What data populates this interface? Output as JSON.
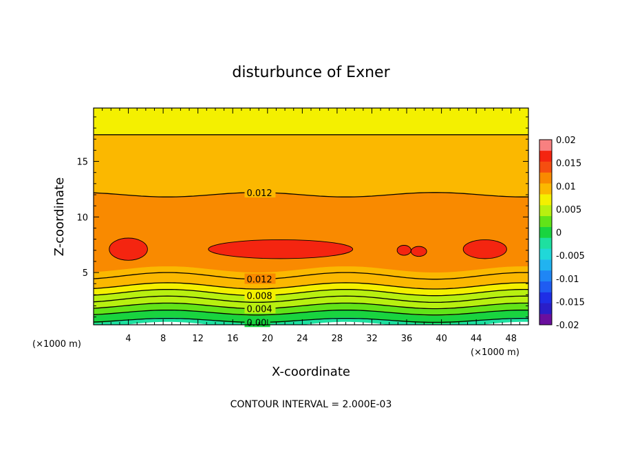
{
  "chart_data": {
    "type": "heatmap",
    "title": "disturbunce of Exner",
    "xlabel": "X-coordinate",
    "ylabel": "Z-coordinate",
    "x_unit": "(×1000 m)",
    "xlim": [
      0,
      50
    ],
    "ylim": [
      0.3,
      19.8
    ],
    "x_ticks": [
      4,
      8,
      12,
      16,
      20,
      24,
      28,
      32,
      36,
      40,
      44,
      48
    ],
    "x_tick_labels": [
      "4",
      "8",
      "12",
      "16",
      "20",
      "24",
      "28",
      "32",
      "36",
      "40",
      "44",
      "48"
    ],
    "y_ticks": [
      5,
      10,
      15
    ],
    "y_tick_labels": [
      "5",
      "10",
      "15"
    ],
    "contour_interval_text": "CONTOUR INTERVAL = 2.000E-03",
    "colorbar": {
      "levels": [
        -0.02,
        -0.0175,
        -0.015,
        -0.0125,
        -0.01,
        -0.0075,
        -0.005,
        -0.0025,
        0,
        0.0025,
        0.005,
        0.0075,
        0.01,
        0.0125,
        0.015,
        0.0175,
        0.02
      ],
      "colors": [
        "#6a0f9e",
        "#2a1ec8",
        "#1e2ee6",
        "#1f5cf2",
        "#1f86f5",
        "#21b3f0",
        "#20d8d8",
        "#1ee0a0",
        "#19d43f",
        "#62e318",
        "#b8f010",
        "#f4f000",
        "#fbb800",
        "#f98a00",
        "#f54e10",
        "#f42510",
        "#f88080"
      ],
      "tick_values": [
        0.02,
        0.015,
        0.01,
        0.005,
        0,
        -0.005,
        -0.01,
        -0.015,
        -0.02
      ],
      "tick_labels": [
        "0.02",
        "0.015",
        "0.01",
        "0.005",
        "0",
        "-0.005",
        "-0.01",
        "-0.015",
        "-0.02"
      ]
    },
    "fill_bands": [
      {
        "z_bottom": 0.3,
        "z_top": 0.7,
        "value": -0.001
      },
      {
        "z_bottom": 0.7,
        "z_top": 1.4,
        "value": 0.001
      },
      {
        "z_bottom": 1.4,
        "z_top": 2.0,
        "value": 0.003
      },
      {
        "z_bottom": 2.0,
        "z_top": 2.6,
        "value": 0.005
      },
      {
        "z_bottom": 2.6,
        "z_top": 3.2,
        "value": 0.007
      },
      {
        "z_bottom": 3.2,
        "z_top": 3.8,
        "value": 0.009
      },
      {
        "z_bottom": 3.8,
        "z_top": 4.4,
        "value": 0.0105
      },
      {
        "z_bottom": 4.4,
        "z_top": 5.3,
        "value": 0.0118
      },
      {
        "z_bottom": 5.3,
        "z_top": 9.6,
        "value": 0.0145
      },
      {
        "z_bottom": 9.6,
        "z_top": 12.0,
        "value": 0.0125
      },
      {
        "z_bottom": 12.0,
        "z_top": 14.8,
        "value": 0.0115
      },
      {
        "z_bottom": 14.8,
        "z_top": 17.4,
        "value": 0.0105
      },
      {
        "z_bottom": 17.4,
        "z_top": 19.8,
        "value": 0.0095
      }
    ],
    "contours": [
      {
        "value": 0.0,
        "label": "0.00",
        "z": 0.7,
        "amp": 0.18,
        "label_x": 17.6
      },
      {
        "value": 0.002,
        "label": "",
        "z": 1.4,
        "amp": 0.22
      },
      {
        "value": 0.004,
        "label": "0.004",
        "z": 2.0,
        "amp": 0.25,
        "label_x": 17.6
      },
      {
        "value": 0.006,
        "label": "",
        "z": 2.6,
        "amp": 0.28
      },
      {
        "value": 0.008,
        "label": "0.008",
        "z": 3.2,
        "amp": 0.28,
        "label_x": 17.6
      },
      {
        "value": 0.01,
        "label": "",
        "z": 3.8,
        "amp": 0.28
      },
      {
        "value": 0.012,
        "label": "0.012",
        "z": 4.7,
        "amp": 0.3,
        "label_x": 17.6
      },
      {
        "value": 0.012,
        "label": "0.012",
        "z": 12.0,
        "amp": -0.2,
        "label_x": 17.6,
        "upper": true
      },
      {
        "value": 0.01,
        "label": "",
        "z": 17.4,
        "amp": 0.0,
        "upper": true
      }
    ],
    "maxima": [
      {
        "x_center": 4.0,
        "z_center": 7.1,
        "x_radius": 2.2,
        "z_radius": 1.0
      },
      {
        "x_center": 21.5,
        "z_center": 7.1,
        "x_radius": 8.3,
        "z_radius": 0.85
      },
      {
        "x_center": 35.7,
        "z_center": 7.0,
        "x_radius": 0.8,
        "z_radius": 0.45
      },
      {
        "x_center": 37.4,
        "z_center": 6.9,
        "x_radius": 0.9,
        "z_radius": 0.45
      },
      {
        "x_center": 45.0,
        "z_center": 7.1,
        "x_radius": 2.5,
        "z_radius": 0.85
      }
    ]
  }
}
